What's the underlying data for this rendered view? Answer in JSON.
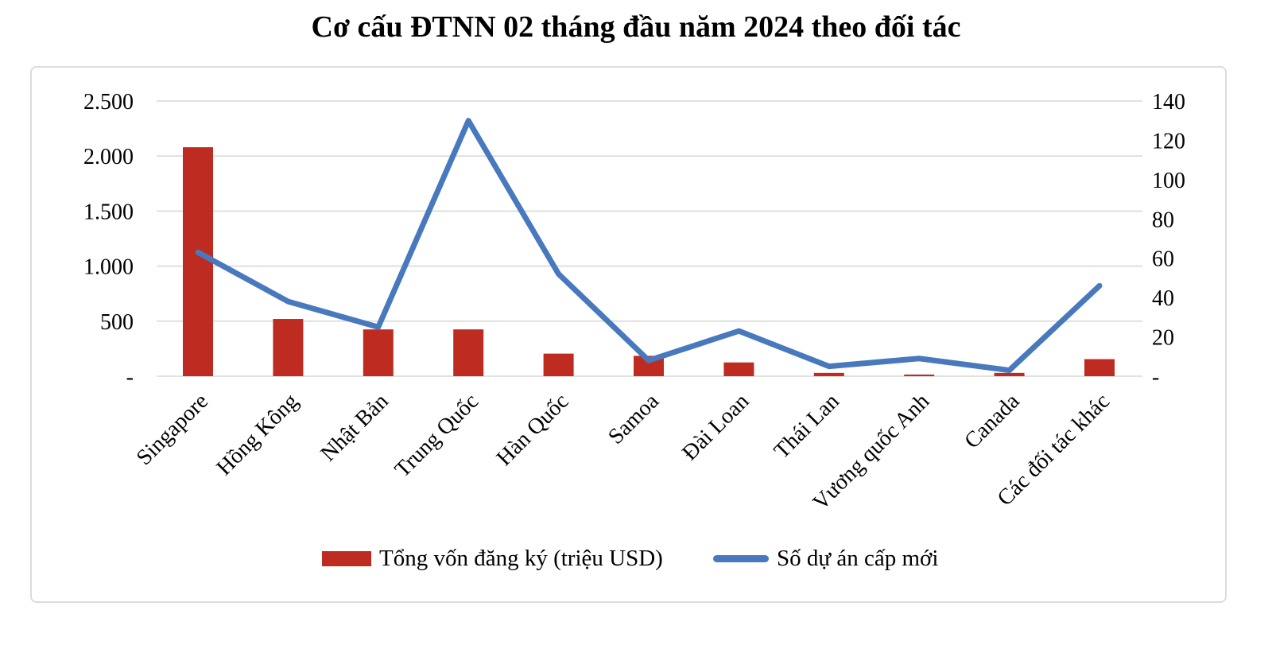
{
  "chart_data": {
    "type": "bar",
    "subtype": "combo-bar-line",
    "title": "Cơ cấu ĐTNN 02 tháng đầu năm 2024 theo đối tác",
    "categories": [
      "Singapore",
      "Hồng Kông",
      "Nhật Bản",
      "Trung Quốc",
      "Hàn Quốc",
      "Samoa",
      "Đài Loan",
      "Thái Lan",
      "Vương quốc Anh",
      "Canada",
      "Các đối tác khác"
    ],
    "series": [
      {
        "name": "Tổng vốn đăng ký (triệu USD)",
        "type": "bar",
        "axis": "left",
        "color": "#be2b20",
        "values": [
          2080,
          520,
          425,
          425,
          205,
          185,
          125,
          30,
          15,
          30,
          155
        ]
      },
      {
        "name": "Số dự án cấp mới",
        "type": "line",
        "axis": "right",
        "color": "#4879bd",
        "values": [
          63,
          38,
          25,
          130,
          52,
          8,
          23,
          5,
          9,
          3,
          46
        ]
      }
    ],
    "left_axis": {
      "min": 0,
      "max": 2500,
      "tick_labels_top_to_bottom": [
        "2.500",
        "2.000",
        "1.500",
        "1.000",
        "500",
        "-"
      ]
    },
    "right_axis": {
      "min": 0,
      "max": 140,
      "tick_labels_top_to_bottom": [
        "140",
        "120",
        "100",
        "80",
        "60",
        "40",
        "20",
        "-"
      ]
    },
    "grid": true,
    "gridline_color": "#d9d9d9",
    "legend_position": "bottom"
  }
}
